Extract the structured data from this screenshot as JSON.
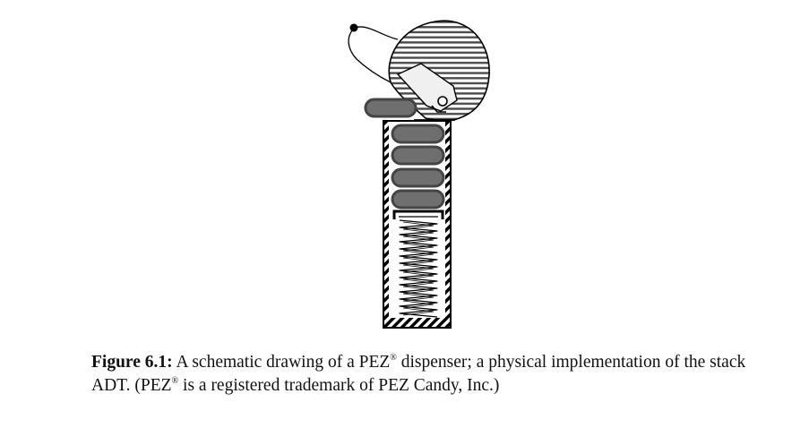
{
  "figure": {
    "label": "Figure 6.1:",
    "caption_pre": "A schematic drawing of a PEZ",
    "reg_mark": "®",
    "caption_mid": "dispenser; a physical implementation of the stack ADT. (PEZ",
    "caption_post": "is a registered trademark of PEZ Candy, Inc.)"
  },
  "drawing": {
    "candies_in_tube": 4,
    "candy_popped": 1,
    "colors": {
      "candy_fill": "#6f6f6f",
      "candy_edge": "#444444",
      "outline": "#000000",
      "head_stripes": "#555555",
      "tab_fill": "#f0f0f0"
    }
  }
}
